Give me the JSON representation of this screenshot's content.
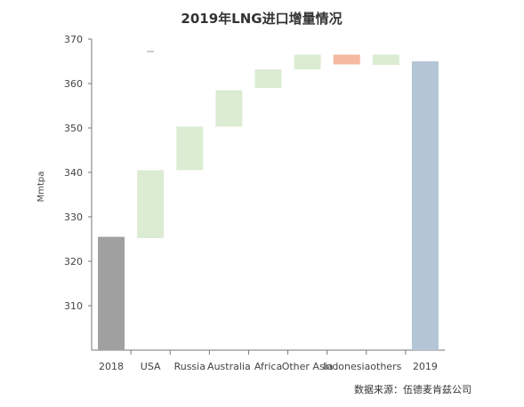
{
  "chart_data": {
    "type": "bar",
    "subtype": "waterfall",
    "title": "2019年LNG进口增量情况",
    "ylabel": "Mmtpa",
    "xlabel": "",
    "ylim": [
      300,
      370
    ],
    "yticks": [
      310,
      320,
      330,
      340,
      350,
      360,
      370
    ],
    "grid": false,
    "categories": [
      "2018",
      "USA",
      "Russia",
      "Australia",
      "Africa",
      "Other Asia",
      "Indonesia",
      "others",
      "2019"
    ],
    "bars": [
      {
        "category": "2018",
        "kind": "total",
        "start": 300,
        "end": 325.5,
        "color": "#a0a0a0"
      },
      {
        "category": "USA",
        "kind": "increase",
        "start": 325.2,
        "end": 340.5,
        "color": "#dcecd3"
      },
      {
        "category": "Russia",
        "kind": "increase",
        "start": 340.5,
        "end": 350.3,
        "color": "#dcecd3"
      },
      {
        "category": "Australia",
        "kind": "increase",
        "start": 350.3,
        "end": 358.5,
        "color": "#dcecd3"
      },
      {
        "category": "Africa",
        "kind": "increase",
        "start": 359.0,
        "end": 363.2,
        "color": "#dcecd3"
      },
      {
        "category": "Other Asia",
        "kind": "increase",
        "start": 363.2,
        "end": 366.5,
        "color": "#dcecd3"
      },
      {
        "category": "Indonesia",
        "kind": "decrease",
        "start": 366.5,
        "end": 364.3,
        "color": "#f4b9a0"
      },
      {
        "category": "others",
        "kind": "increase",
        "start": 364.2,
        "end": 366.5,
        "color": "#dcecd3"
      },
      {
        "category": "2019",
        "kind": "total",
        "start": 300,
        "end": 365.0,
        "color": "#b4c6d6"
      }
    ],
    "annotations": {
      "source": "数据来源：伍德麦肯兹公司"
    }
  }
}
